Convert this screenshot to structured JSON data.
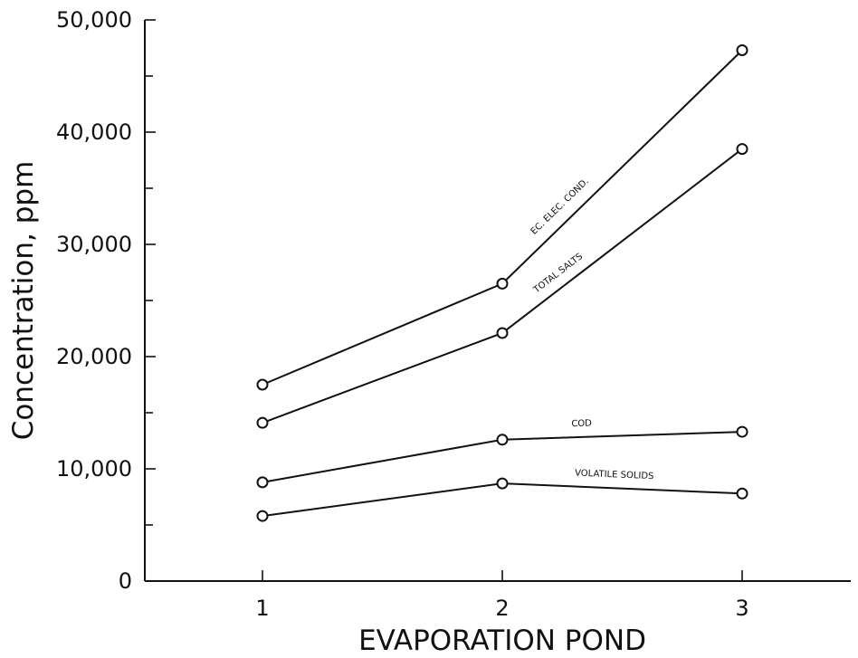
{
  "chart_data": {
    "type": "line",
    "title": "",
    "xlabel": "EVAPORATION POND",
    "ylabel": "Concentration, ppm",
    "x": [
      1,
      2,
      3
    ],
    "xlim": [
      0.5,
      3.5
    ],
    "ylim": [
      0,
      50000
    ],
    "yticks": [
      0,
      10000,
      20000,
      30000,
      40000,
      50000
    ],
    "ytick_labels": [
      "0",
      "10,000",
      "20,000",
      "30,000",
      "40,000",
      "50,000"
    ],
    "xtick_labels": [
      "1",
      "2",
      "3"
    ],
    "grid": false,
    "legend": "none",
    "series": [
      {
        "name": "EC. ELEC. COND.",
        "values": [
          17500,
          26500,
          47300
        ]
      },
      {
        "name": "TOTAL SALTS",
        "values": [
          14100,
          22100,
          38500
        ]
      },
      {
        "name": "COD",
        "values": [
          8800,
          12600,
          13300
        ]
      },
      {
        "name": "VOLATILE SOLIDS",
        "values": [
          5800,
          8700,
          7800
        ]
      }
    ]
  }
}
